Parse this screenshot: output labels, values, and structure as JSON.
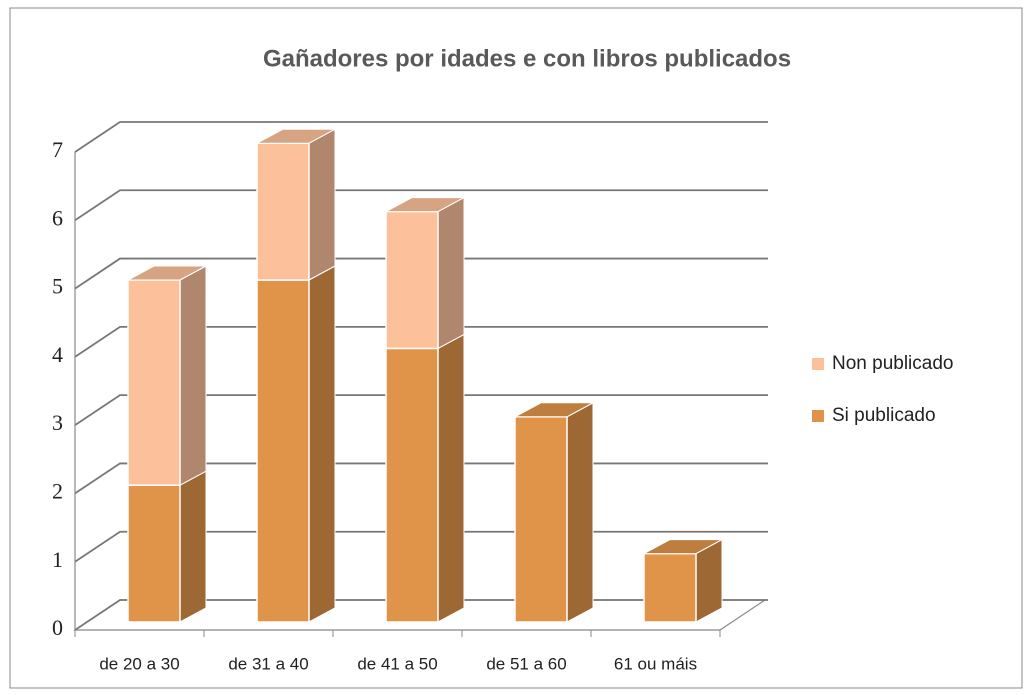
{
  "chart_data": {
    "type": "bar3d_stacked",
    "title": "Gañadores por idades e con libros publicados",
    "categories": [
      "de 20 a 30",
      "de 31 a 40",
      "de 41 a 50",
      "de 51 a 60",
      "61 ou máis"
    ],
    "series": [
      {
        "name": "Si publicado",
        "color": "#e0944a",
        "values": [
          2,
          5,
          4,
          3,
          1
        ]
      },
      {
        "name": "Non publicado",
        "color": "#fcc09a",
        "values": [
          3,
          2,
          2,
          0,
          0
        ]
      }
    ],
    "ylim": [
      0,
      7
    ],
    "yticks": [
      0,
      1,
      2,
      3,
      4,
      5,
      6,
      7
    ],
    "grid": true,
    "legend": "right"
  }
}
